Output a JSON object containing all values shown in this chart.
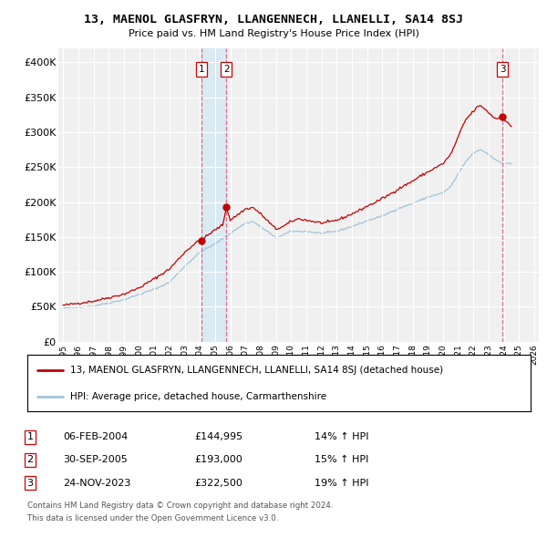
{
  "title": "13, MAENOL GLASFRYN, LLANGENNECH, LLANELLI, SA14 8SJ",
  "subtitle": "Price paid vs. HM Land Registry's House Price Index (HPI)",
  "legend_line1": "13, MAENOL GLASFRYN, LLANGENNECH, LLANELLI, SA14 8SJ (detached house)",
  "legend_line2": "HPI: Average price, detached house, Carmarthenshire",
  "footer1": "Contains HM Land Registry data © Crown copyright and database right 2024.",
  "footer2": "This data is licensed under the Open Government Licence v3.0.",
  "transactions": [
    {
      "num": 1,
      "date": "06-FEB-2004",
      "price": "£144,995",
      "change": "14% ↑ HPI",
      "year": 2004.09
    },
    {
      "num": 2,
      "date": "30-SEP-2005",
      "price": "£193,000",
      "change": "15% ↑ HPI",
      "year": 2005.75
    },
    {
      "num": 3,
      "date": "24-NOV-2023",
      "price": "£322,500",
      "change": "19% ↑ HPI",
      "year": 2023.9
    }
  ],
  "transaction_prices": [
    144995,
    193000,
    322500
  ],
  "hpi_color": "#a0c4dd",
  "price_color": "#c00000",
  "vline_color": "#e06080",
  "shade_color": "#d0e8f5",
  "dot_color": "#c00000",
  "ylim": [
    0,
    420000
  ],
  "yticks": [
    0,
    50000,
    100000,
    150000,
    200000,
    250000,
    300000,
    350000,
    400000
  ],
  "ytick_labels": [
    "£0",
    "£50K",
    "£100K",
    "£150K",
    "£200K",
    "£250K",
    "£300K",
    "£350K",
    "£400K"
  ],
  "xlim_left": 1994.7,
  "xlim_right": 2026.3,
  "background_color": "#f0f0f0",
  "grid_color": "#ffffff"
}
